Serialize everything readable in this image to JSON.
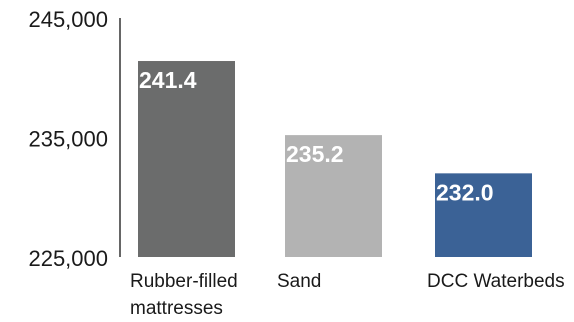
{
  "chart_data": {
    "type": "bar",
    "title": "",
    "xlabel": "",
    "ylabel": "",
    "ylim": [
      225000,
      245000
    ],
    "y_ticks": [
      "245,000",
      "235,000",
      "225,000"
    ],
    "y_tick_values": [
      245000,
      235000,
      225000
    ],
    "grid": false,
    "legend": "none",
    "categories": [
      [
        "Rubber-filled",
        "mattresses"
      ],
      [
        "Sand"
      ],
      [
        "DCC Waterbeds"
      ]
    ],
    "values": [
      241400,
      235200,
      232000
    ],
    "data_labels": [
      "241.4",
      "235.2",
      "232.0"
    ],
    "colors": [
      "#6b6c6c",
      "#b3b3b3",
      "#3b6296"
    ],
    "label_color": "#ffffff",
    "axis_color": "#333333",
    "text_color": "#1a1a1a"
  }
}
